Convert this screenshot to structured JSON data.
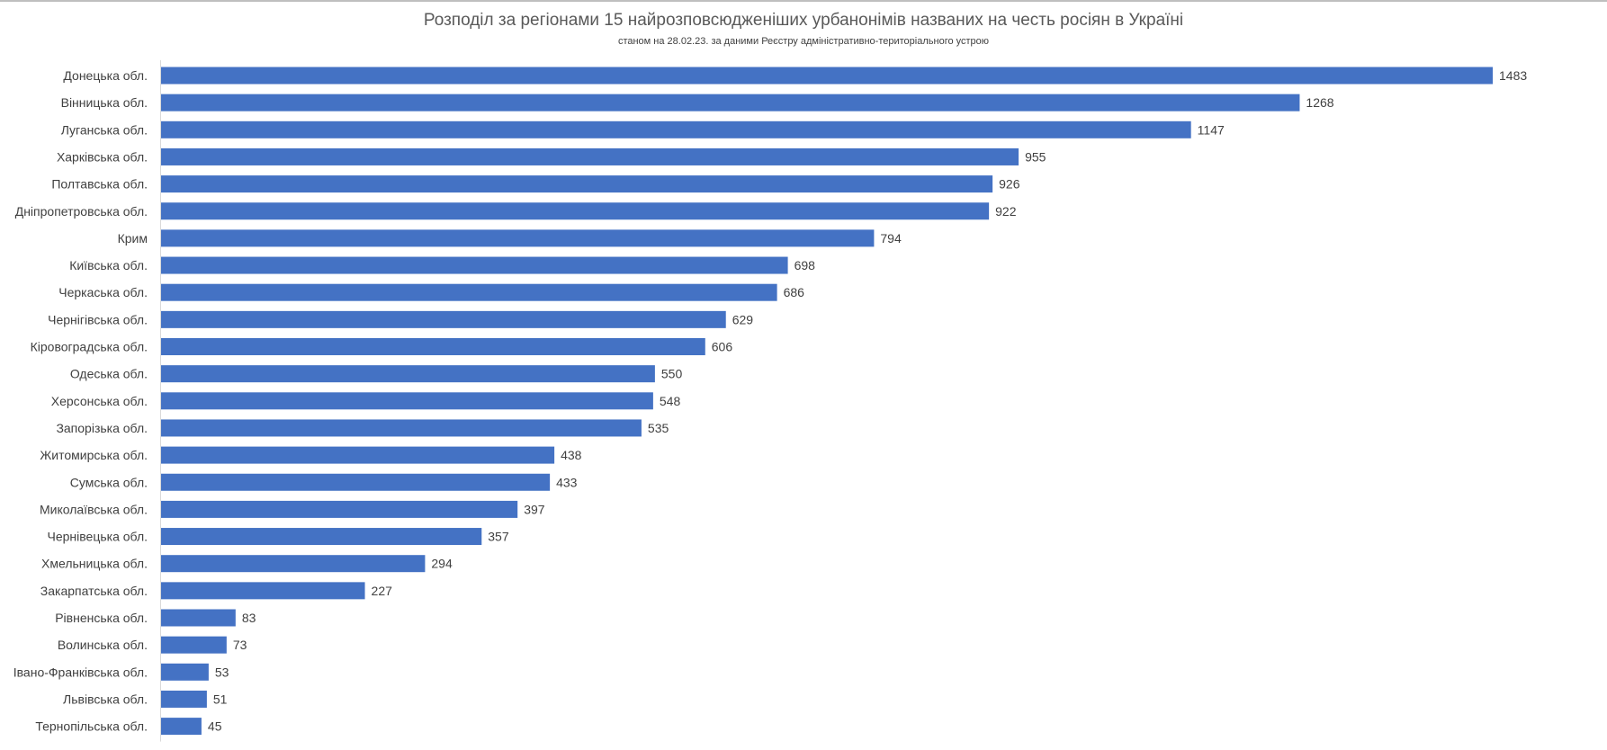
{
  "chart_data": {
    "type": "bar",
    "orientation": "horizontal",
    "title": "Розподіл за регіонами 15 найрозповсюдженіших урбанонімів названих на честь росіян в Україні",
    "subtitle": "станом на 28.02.23. за даними Реєстру адміністративно-територіального устрою",
    "xlabel": "",
    "ylabel": "",
    "xlim": [
      0,
      1483
    ],
    "grid": false,
    "legend": "none",
    "bar_color": "#4472C4",
    "categories": [
      "Донецька обл.",
      "Вінницька обл.",
      "Луганська обл.",
      "Харківська обл.",
      "Полтавська обл.",
      "Дніпропетровська обл.",
      "Крим",
      "Київська обл.",
      "Черкаська обл.",
      "Чернігівська обл.",
      "Кіровоградська обл.",
      "Одеська обл.",
      "Херсонська обл.",
      "Запорізька обл.",
      "Житомирська обл.",
      "Сумська обл.",
      "Миколаївська обл.",
      "Чернівецька обл.",
      "Хмельницька обл.",
      "Закарпатська обл.",
      "Рівненська обл.",
      "Волинська обл.",
      "Івано-Франківська обл.",
      "Львівська обл.",
      "Тернопільська обл."
    ],
    "values": [
      1483,
      1268,
      1147,
      955,
      926,
      922,
      794,
      698,
      686,
      629,
      606,
      550,
      548,
      535,
      438,
      433,
      397,
      357,
      294,
      227,
      83,
      73,
      53,
      51,
      45
    ]
  }
}
